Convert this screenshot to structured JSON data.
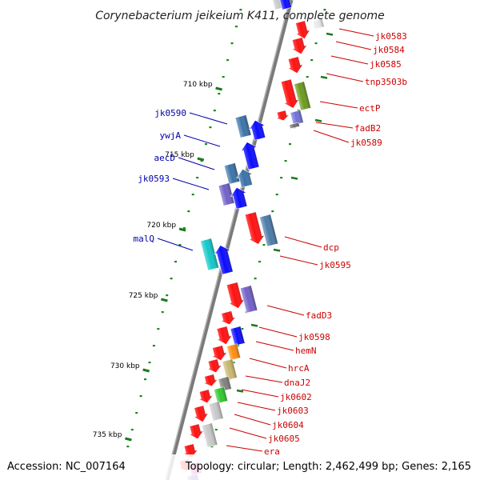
{
  "map": {
    "title": "Corynebacterium jeikeium K411, complete genome",
    "accession": "Accession: NC_007164",
    "stats": "Topology: circular; Length: 2,462,499 bp; Genes: 2,165"
  },
  "colors": {
    "forward_label": "#cc0000",
    "reverse_label": "#0000aa",
    "scale_tick": "#1a7a1a",
    "dot": "#1a8a1a"
  },
  "scale": {
    "start_kbp": 710,
    "step_kbp": 5,
    "labels": [
      "710 kbp",
      "715 kbp",
      "720 kbp",
      "725 kbp",
      "730 kbp",
      "735 kbp"
    ]
  },
  "genes": [
    {
      "name": "jk0583",
      "strand": "forward",
      "color": "#ff1010",
      "labelled": true
    },
    {
      "name": "jk0584",
      "strand": "forward",
      "color": "#ff1010",
      "labelled": true
    },
    {
      "name": "jk0585",
      "strand": "forward",
      "color": "#ff1010",
      "labelled": true
    },
    {
      "name": "tnp3503b",
      "strand": "forward",
      "color": "#ff1010",
      "labelled": true
    },
    {
      "name": "ectP",
      "strand": "forward",
      "color": "#6b9a1e",
      "labelled": true
    },
    {
      "name": "fadB2",
      "strand": "forward",
      "color": "#7070d8",
      "labelled": true
    },
    {
      "name": "jk0589",
      "strand": "forward",
      "color": "#707070",
      "labelled": true
    },
    {
      "name": "jk0590",
      "strand": "reverse",
      "color": "#3a72a8",
      "labelled": true
    },
    {
      "name": "ywjA",
      "strand": "reverse",
      "color": "#0b0bff",
      "labelled": true
    },
    {
      "name": "aecD",
      "strand": "reverse",
      "color": "#3a72a8",
      "labelled": true
    },
    {
      "name": "jk0593",
      "strand": "reverse",
      "color": "#7060c8",
      "labelled": true
    },
    {
      "name": "dcp",
      "strand": "forward",
      "color": "#ff1010",
      "labelled": true
    },
    {
      "name": "jk0595",
      "strand": "forward",
      "color": "#4a7aa8",
      "labelled": true
    },
    {
      "name": "malQ",
      "strand": "reverse",
      "color": "#12c8c8",
      "labelled": true
    },
    {
      "name": "fadD3",
      "strand": "forward",
      "color": "#7060c8",
      "labelled": true
    },
    {
      "name": "jk0598",
      "strand": "forward",
      "color": "#0b0bff",
      "labelled": true
    },
    {
      "name": "hemN",
      "strand": "forward",
      "color": "#ff8c10",
      "labelled": true
    },
    {
      "name": "hrcA",
      "strand": "forward",
      "color": "#c8b870",
      "labelled": true
    },
    {
      "name": "dnaJ2",
      "strand": "forward",
      "color": "#808080",
      "labelled": true
    },
    {
      "name": "jk0602",
      "strand": "forward",
      "color": "#30c830",
      "labelled": true
    },
    {
      "name": "jk0603",
      "strand": "forward",
      "color": "#c8c8c8",
      "labelled": true
    },
    {
      "name": "jk0604",
      "strand": "forward",
      "color": "#c8c8c8",
      "labelled": true
    },
    {
      "name": "jk0605",
      "strand": "forward",
      "color": "#c8c8c8",
      "labelled": true
    },
    {
      "name": "era",
      "strand": "forward",
      "color": "#ff1010",
      "labelled": true
    }
  ]
}
